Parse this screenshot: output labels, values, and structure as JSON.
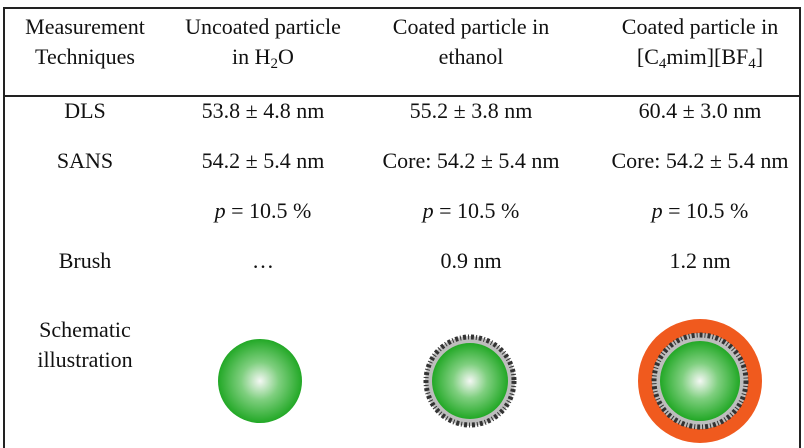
{
  "table": {
    "header": [
      [
        [
          {
            "text": "Measurement"
          }
        ],
        [
          {
            "text": "Techniques"
          }
        ]
      ],
      [
        [
          {
            "text": "Uncoated particle"
          }
        ],
        [
          {
            "text": "in H"
          },
          {
            "text": "2",
            "sub": true
          },
          {
            "text": "O"
          }
        ]
      ],
      [
        [
          {
            "text": "Coated particle in"
          }
        ],
        [
          {
            "text": "ethanol"
          }
        ]
      ],
      [
        [
          {
            "text": "Coated particle in"
          }
        ],
        [
          {
            "text": "[C"
          },
          {
            "text": "4",
            "sub": true
          },
          {
            "text": "mim][BF"
          },
          {
            "text": "4",
            "sub": true
          },
          {
            "text": "]"
          }
        ]
      ]
    ],
    "rows": [
      [
        [
          [
            {
              "text": "DLS"
            }
          ]
        ],
        [
          [
            {
              "text": "53.8 ± 4.8 nm"
            }
          ]
        ],
        [
          [
            {
              "text": "55.2 ± 3.8 nm"
            }
          ]
        ],
        [
          [
            {
              "text": "60.4 ± 3.0 nm"
            }
          ]
        ]
      ],
      [
        [
          [
            {
              "text": "SANS"
            }
          ]
        ],
        [
          [
            {
              "text": "54.2 ± 5.4 nm"
            }
          ]
        ],
        [
          [
            {
              "text": "Core: 54.2 ± 5.4 nm"
            }
          ]
        ],
        [
          [
            {
              "text": "Core: 54.2 ± 5.4 nm"
            }
          ]
        ]
      ],
      [
        [],
        [
          [
            {
              "text": "p",
              "italic": true
            },
            {
              "text": " = 10.5 %"
            }
          ]
        ],
        [
          [
            {
              "text": "p",
              "italic": true
            },
            {
              "text": " = 10.5 %"
            }
          ]
        ],
        [
          [
            {
              "text": "p",
              "italic": true
            },
            {
              "text": " = 10.5 %"
            }
          ]
        ]
      ],
      [
        [
          [
            {
              "text": "Brush"
            }
          ]
        ],
        [
          [
            {
              "text": "…"
            }
          ]
        ],
        [
          [
            {
              "text": "0.9 nm"
            }
          ]
        ],
        [
          [
            {
              "text": "1.2 nm"
            }
          ]
        ]
      ],
      [
        [
          [
            {
              "text": "Schematic"
            }
          ],
          [
            {
              "text": "illustration"
            }
          ]
        ],
        [],
        [],
        []
      ]
    ]
  }
}
